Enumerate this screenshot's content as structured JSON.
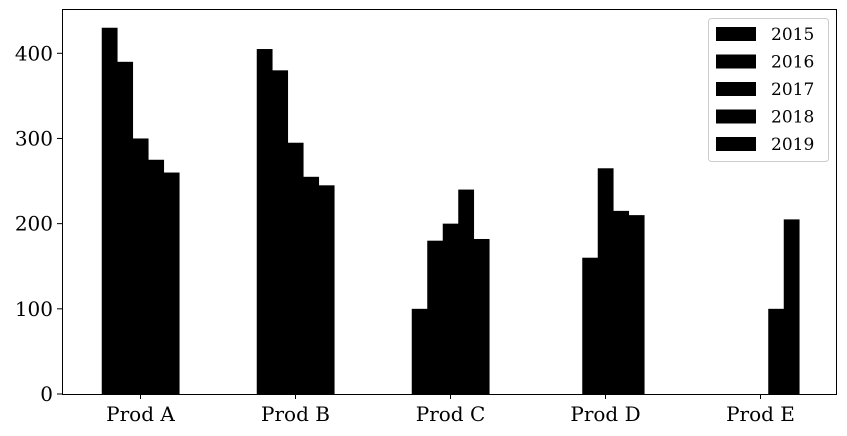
{
  "chart_data": {
    "type": "bar",
    "categories": [
      "Prod A",
      "Prod B",
      "Prod C",
      "Prod D",
      "Prod E"
    ],
    "series": [
      {
        "name": "2015",
        "values": [
          430,
          405,
          100,
          0,
          0
        ]
      },
      {
        "name": "2016",
        "values": [
          390,
          380,
          180,
          160,
          0
        ]
      },
      {
        "name": "2017",
        "values": [
          300,
          295,
          200,
          265,
          0
        ]
      },
      {
        "name": "2018",
        "values": [
          275,
          255,
          240,
          215,
          100
        ]
      },
      {
        "name": "2019",
        "values": [
          260,
          245,
          182,
          210,
          205
        ]
      }
    ],
    "ylim": [
      0,
      452
    ],
    "yticks": [
      "0",
      "100",
      "200",
      "300",
      "400"
    ],
    "grid": false,
    "legend_position": "top-right",
    "bar_color": "#000000"
  }
}
